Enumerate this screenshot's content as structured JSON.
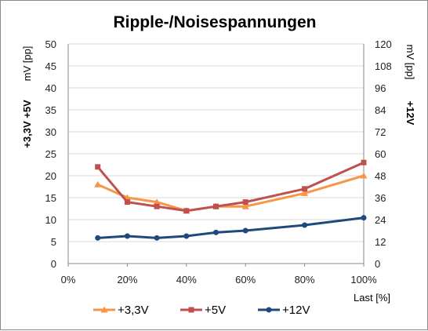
{
  "chart_data": {
    "type": "line",
    "title": "Ripple-/Noisespannungen",
    "xlabel": "Last [%]",
    "x": [
      10,
      20,
      30,
      40,
      50,
      60,
      80,
      100
    ],
    "xlim": [
      0,
      100
    ],
    "x_ticks": [
      "0%",
      "20%",
      "40%",
      "60%",
      "80%",
      "100%"
    ],
    "y_left": {
      "label_unit": "mV [pp]",
      "label_series": "+3,3V +5V",
      "range": [
        0,
        50
      ],
      "ticks": [
        "0",
        "5",
        "10",
        "15",
        "20",
        "25",
        "30",
        "35",
        "40",
        "45",
        "50"
      ]
    },
    "y_right": {
      "label_unit": "mV [pp]",
      "label_series": "+12V",
      "range": [
        0,
        120
      ],
      "ticks": [
        "0",
        "12",
        "24",
        "36",
        "48",
        "60",
        "72",
        "84",
        "96",
        "108",
        "120"
      ]
    },
    "grid": "horizontal",
    "legend_position": "bottom",
    "series": [
      {
        "name": "+3,3V",
        "axis": "left",
        "color": "#f79646",
        "marker": "triangle",
        "values": [
          18,
          15,
          14,
          12,
          13,
          13,
          16,
          20
        ]
      },
      {
        "name": "+5V",
        "axis": "left",
        "color": "#c0504d",
        "marker": "square",
        "values": [
          22,
          14,
          13,
          12,
          13,
          14,
          17,
          23
        ]
      },
      {
        "name": "+12V",
        "axis": "right",
        "color": "#1f497d",
        "marker": "circle",
        "values": [
          14,
          15,
          14,
          15,
          17,
          18,
          21,
          25
        ]
      }
    ]
  }
}
